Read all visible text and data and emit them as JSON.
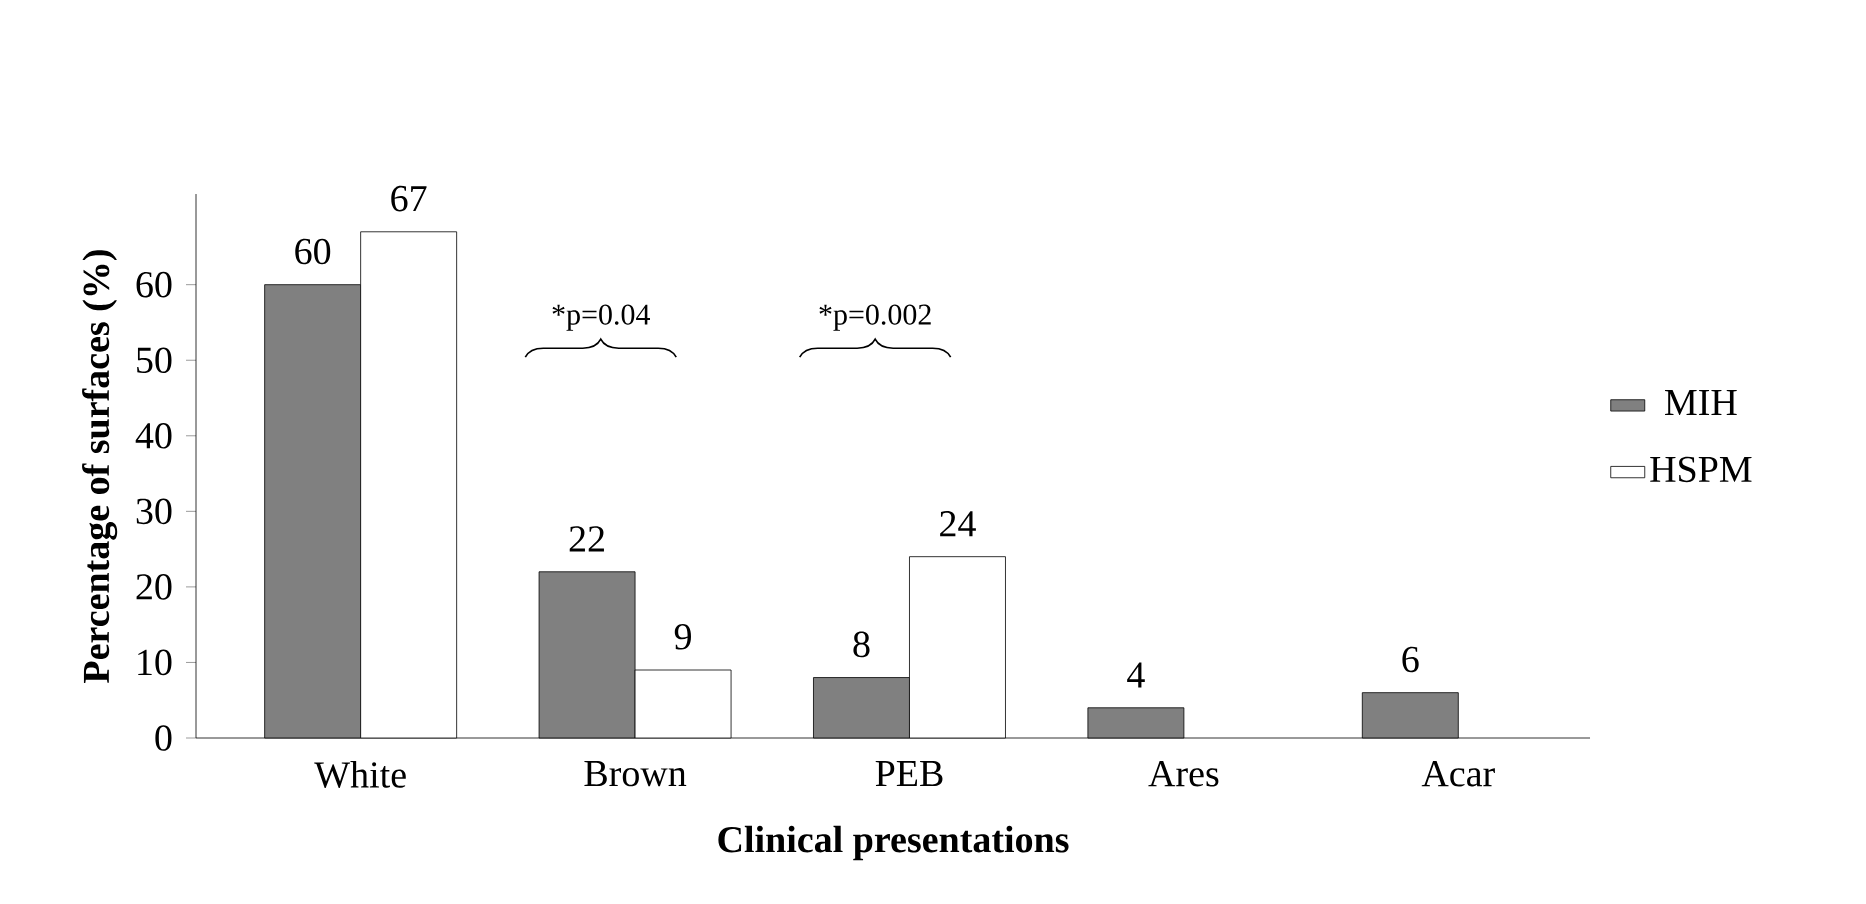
{
  "chart_data": {
    "type": "bar",
    "xlabel": "Clinical presentations",
    "ylabel": "Percentage of surfaces (%)",
    "categories": [
      "White",
      "Brown",
      "PEB",
      "Ares",
      "Acar"
    ],
    "series": [
      {
        "name": "MIH",
        "color": "#808080",
        "values": [
          60,
          22,
          8,
          4,
          6
        ]
      },
      {
        "name": "HSPM",
        "color": "#ffffff",
        "values": [
          67,
          9,
          24,
          null,
          null
        ]
      }
    ],
    "annotations": [
      "*p=0.04",
      "*p=0.002"
    ],
    "ylim": [
      0,
      72
    ],
    "yticks": [
      0,
      10,
      20,
      30,
      40,
      50,
      60
    ],
    "data_labels": true,
    "legend": "right",
    "grid": false
  }
}
